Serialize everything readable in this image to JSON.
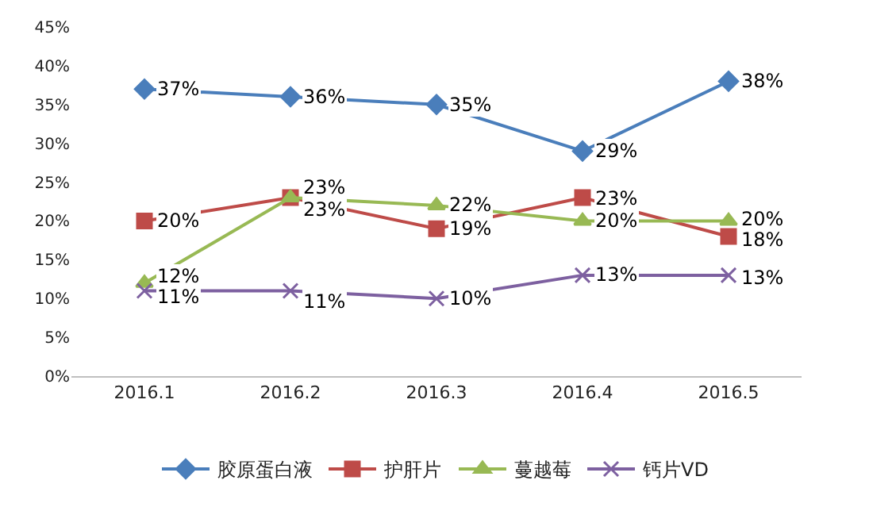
{
  "chart_data": {
    "type": "line",
    "categories": [
      "2016.1",
      "2016.2",
      "2016.3",
      "2016.4",
      "2016.5"
    ],
    "series": [
      {
        "name": "胶原蛋白液",
        "color": "#4a7ebb",
        "marker": "diamond",
        "values": [
          37,
          36,
          35,
          29,
          38
        ],
        "value_labels": [
          "37%",
          "36%",
          "35%",
          "29%",
          "38%"
        ]
      },
      {
        "name": "护肝片",
        "color": "#be4b48",
        "marker": "square",
        "values": [
          20,
          23,
          19,
          23,
          18
        ],
        "value_labels": [
          "20%",
          "23%",
          "19%",
          "23%",
          "18%"
        ]
      },
      {
        "name": "蔓越莓",
        "color": "#98b954",
        "marker": "triangle",
        "values": [
          12,
          23,
          22,
          20,
          20
        ],
        "value_labels": [
          "12%",
          "23%",
          "22%",
          "20%",
          "20%"
        ]
      },
      {
        "name": "钙片VD",
        "color": "#7d60a0",
        "marker": "cross",
        "values": [
          11,
          11,
          10,
          13,
          13
        ],
        "value_labels": [
          "11%",
          "11%",
          "10%",
          "13%",
          "13%"
        ]
      }
    ],
    "ylim": [
      0,
      45
    ],
    "yticks": [
      {
        "value": 0,
        "label": "0%"
      },
      {
        "value": 5,
        "label": "5%"
      },
      {
        "value": 10,
        "label": "10%"
      },
      {
        "value": 15,
        "label": "15%"
      },
      {
        "value": 20,
        "label": "20%"
      },
      {
        "value": 25,
        "label": "25%"
      },
      {
        "value": 30,
        "label": "30%"
      },
      {
        "value": 35,
        "label": "35%"
      },
      {
        "value": 40,
        "label": "40%"
      },
      {
        "value": 45,
        "label": "45%"
      }
    ],
    "legend": "bottom",
    "line_style": "solid"
  }
}
